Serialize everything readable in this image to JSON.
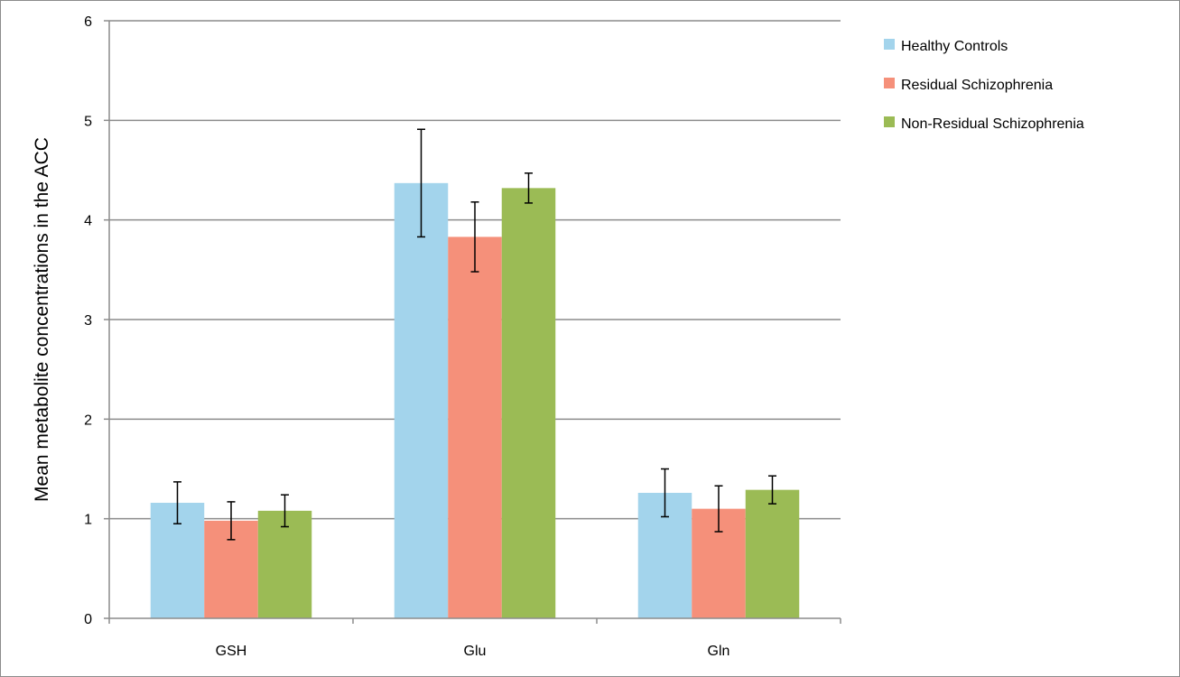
{
  "chart_data": {
    "type": "bar",
    "title": "",
    "xlabel": "",
    "ylabel": "Mean metabolite concentrations in the ACC",
    "ylim": [
      0,
      6
    ],
    "yticks": [
      "0",
      "1",
      "2",
      "3",
      "4",
      "5",
      "6"
    ],
    "grid": "horizontal",
    "legend_position": "right",
    "categories": [
      "GSH",
      "Glu",
      "Gln"
    ],
    "series": [
      {
        "name": "Healthy Controls",
        "color": "#a3d4ec",
        "values": [
          1.16,
          4.37,
          1.26
        ],
        "errors": [
          0.21,
          0.54,
          0.24
        ]
      },
      {
        "name": "Residual Schizophrenia",
        "color": "#f5907a",
        "values": [
          0.98,
          3.83,
          1.1
        ],
        "errors": [
          0.19,
          0.35,
          0.23
        ]
      },
      {
        "name": "Non-Residual Schizophrenia",
        "color": "#9bbb55",
        "values": [
          1.08,
          4.32,
          1.29
        ],
        "errors": [
          0.16,
          0.15,
          0.14
        ]
      }
    ]
  }
}
